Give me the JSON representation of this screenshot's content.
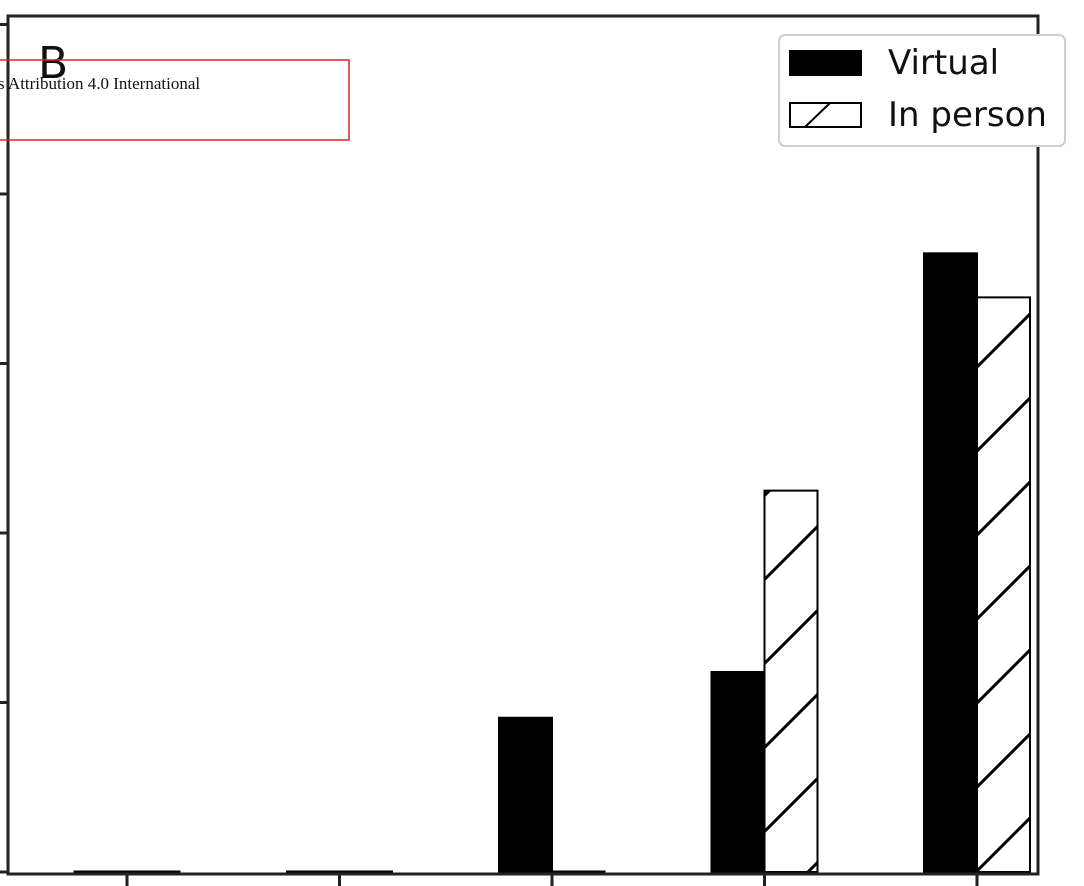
{
  "panel_label": "B",
  "overlay": {
    "text": "s Attribution 4.0 International",
    "border_color": "#d62728"
  },
  "chart_data": {
    "type": "bar",
    "categories": [
      "",
      "",
      "",
      "",
      ""
    ],
    "series": [
      {
        "name": "Virtual",
        "values": [
          0,
          0,
          0.91,
          1.18,
          3.65
        ],
        "fill": "#000000",
        "hatch": false
      },
      {
        "name": "In person",
        "values": [
          0,
          0,
          0,
          2.25,
          3.39
        ],
        "fill": "#ffffff",
        "hatch": true
      }
    ],
    "ylim": [
      0,
      5.05
    ],
    "yticks": [
      0,
      1,
      2,
      3,
      4,
      5
    ],
    "legend_position": "top-right",
    "grid": false,
    "title": "",
    "xlabel": "",
    "ylabel": ""
  }
}
